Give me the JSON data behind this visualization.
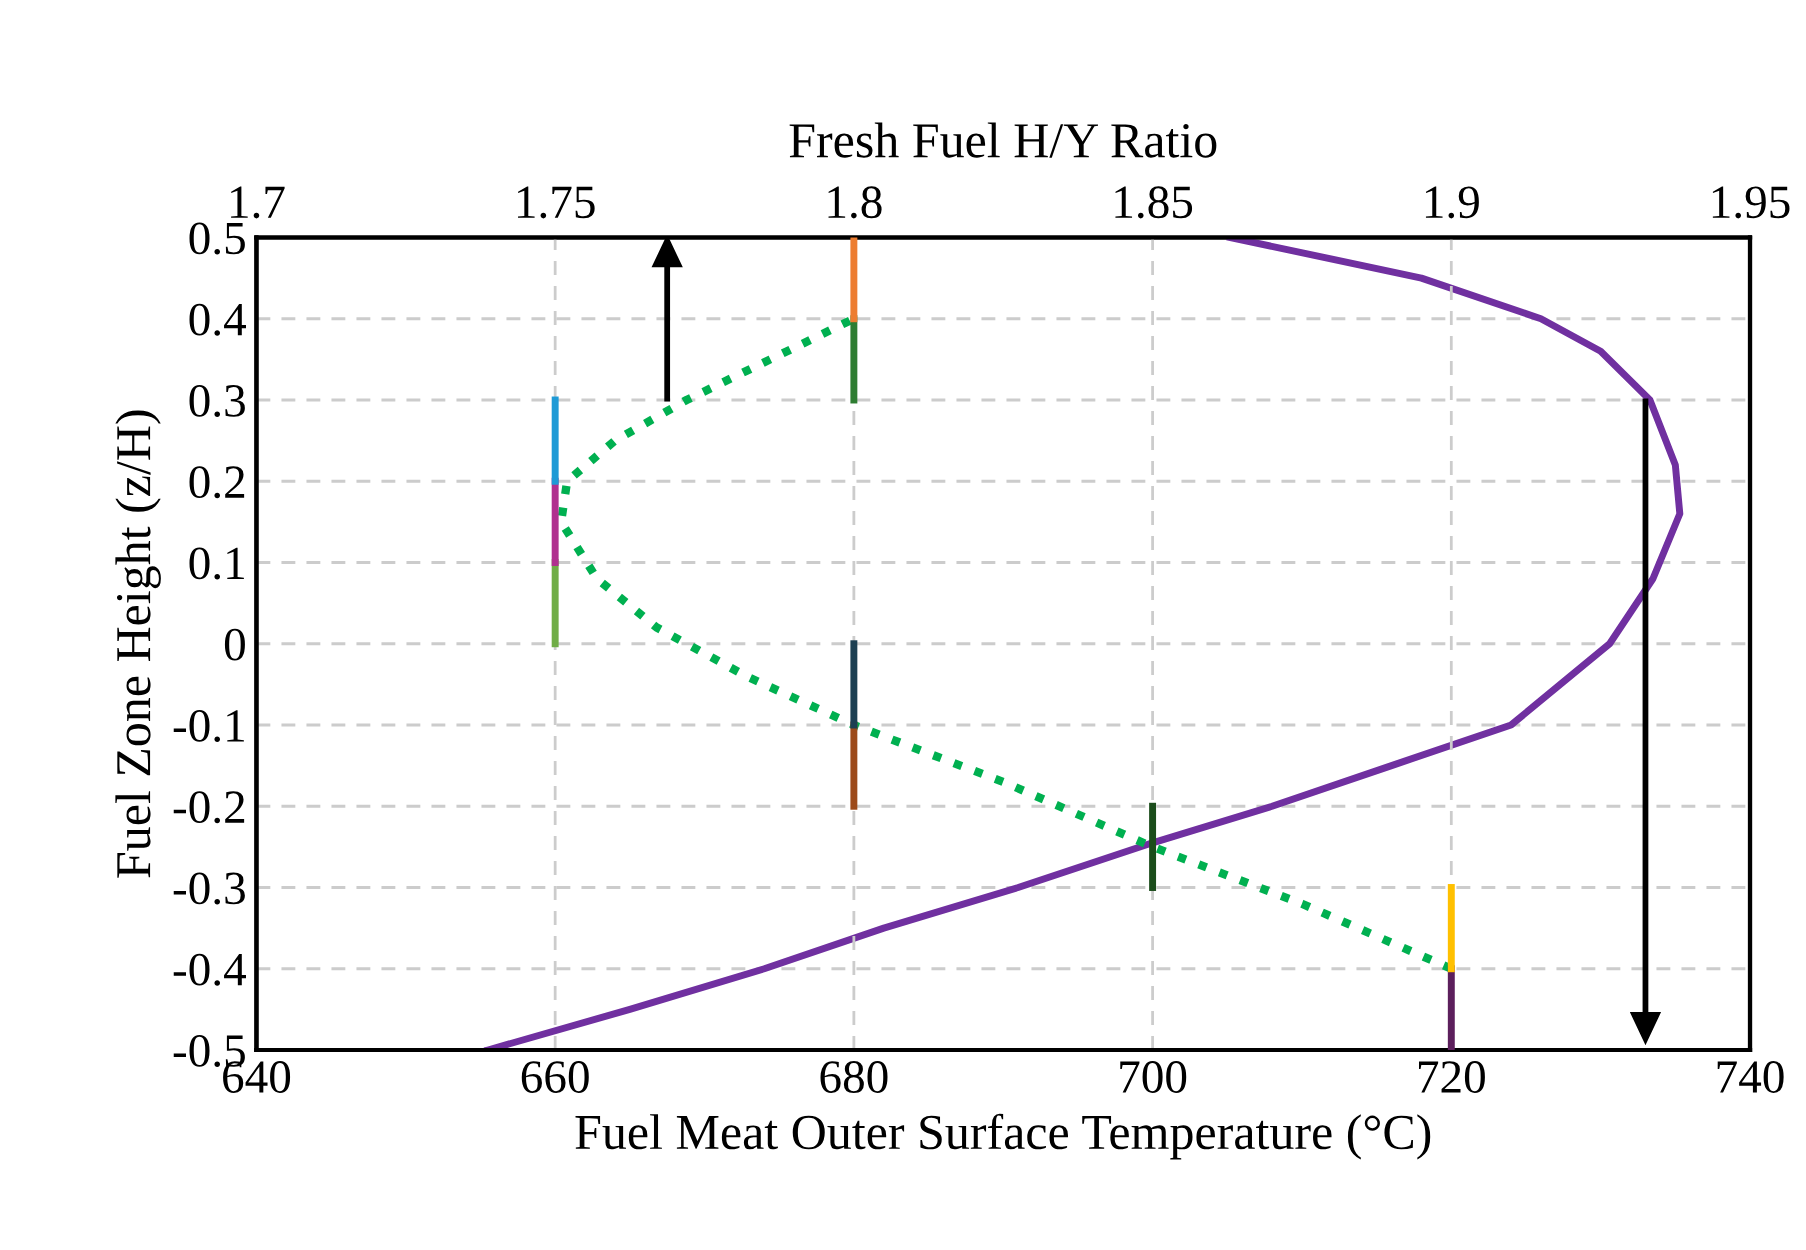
{
  "chart_data": {
    "type": "line",
    "xlabel": "Fuel Meat Outer Surface Temperature (°C)",
    "ylabel": "Fuel Zone Height (z/H)",
    "x2label": "Fresh Fuel H/Y Ratio",
    "xlim": [
      640,
      740
    ],
    "xticks": [
      640,
      660,
      680,
      700,
      720,
      740
    ],
    "x2lim": [
      1.7,
      1.95
    ],
    "x2ticks": [
      1.7,
      1.75,
      1.8,
      1.85,
      1.9,
      1.95
    ],
    "ylim": [
      -0.5,
      0.5
    ],
    "yticks": [
      -0.5,
      -0.4,
      -0.3,
      -0.2,
      -0.1,
      0,
      0.1,
      0.2,
      0.3,
      0.4,
      0.5
    ],
    "grid": true,
    "legend": false,
    "marker": "none",
    "series": [
      {
        "color": "#7030a0",
        "line_style": "solid",
        "x": [
          655.5,
          665,
          674,
          682,
          691,
          700,
          708,
          716,
          724,
          730.6,
          733.5,
          735.3,
          735,
          733.3,
          730,
          726,
          718,
          705.2
        ],
        "values": [
          -0.5,
          -0.45,
          -0.4,
          -0.35,
          -0.3,
          -0.245,
          -0.2,
          -0.15,
          -0.1,
          0,
          0.08,
          0.16,
          0.22,
          0.3,
          0.36,
          0.4,
          0.45,
          0.5
        ]
      },
      {
        "color": "#00b050",
        "line_style": "dotted",
        "axis": "x2",
        "x": [
          1.9,
          1.875,
          1.85,
          1.825,
          1.8,
          1.782,
          1.767,
          1.757,
          1.751,
          1.752,
          1.76,
          1.772,
          1.786,
          1.8
        ],
        "values": [
          -0.4,
          -0.32,
          -0.25,
          -0.17,
          -0.1,
          -0.04,
          0.02,
          0.08,
          0.15,
          0.2,
          0.25,
          0.3,
          0.35,
          0.4
        ]
      },
      {
        "color": "#70ad47",
        "line_style": "solid",
        "axis": "x2",
        "x": [
          1.75,
          1.75
        ],
        "values": [
          0,
          0.1
        ]
      },
      {
        "color": "#b0308f",
        "line_style": "solid",
        "axis": "x2",
        "x": [
          1.75,
          1.75
        ],
        "values": [
          0.1,
          0.2
        ]
      },
      {
        "color": "#1e9ad6",
        "line_style": "solid",
        "axis": "x2",
        "x": [
          1.75,
          1.75
        ],
        "values": [
          0.2,
          0.3
        ]
      },
      {
        "color": "#9c4a1a",
        "line_style": "solid",
        "axis": "x2",
        "x": [
          1.8,
          1.8
        ],
        "values": [
          -0.2,
          -0.1
        ]
      },
      {
        "color": "#1c3f52",
        "line_style": "solid",
        "axis": "x2",
        "x": [
          1.8,
          1.8
        ],
        "values": [
          -0.1,
          0
        ]
      },
      {
        "color": "#2e7d32",
        "line_style": "solid",
        "axis": "x2",
        "x": [
          1.8,
          1.8
        ],
        "values": [
          0.3,
          0.4
        ]
      },
      {
        "color": "#ed7d31",
        "line_style": "solid",
        "axis": "x2",
        "x": [
          1.8,
          1.8
        ],
        "values": [
          0.4,
          0.5
        ]
      },
      {
        "color": "#1b4d1b",
        "line_style": "solid",
        "axis": "x2",
        "x": [
          1.85,
          1.85
        ],
        "values": [
          -0.3,
          -0.2
        ]
      },
      {
        "color": "#5c1f5c",
        "line_style": "solid",
        "axis": "x2",
        "x": [
          1.9,
          1.9
        ],
        "values": [
          -0.5,
          -0.4
        ]
      },
      {
        "color": "#ffc000",
        "line_style": "solid",
        "axis": "x2",
        "x": [
          1.9,
          1.9
        ],
        "values": [
          -0.4,
          -0.3
        ]
      }
    ]
  }
}
